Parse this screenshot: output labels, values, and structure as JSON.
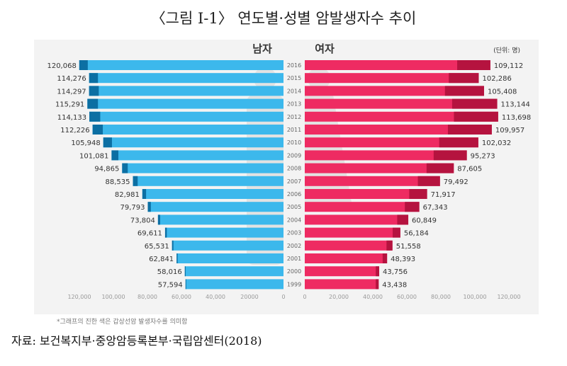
{
  "title": "〈그림 Ⅰ-1〉 연도별·성별 암발생자수 추이",
  "note": "*그래프의 진한 색은 갑상선암 발생자수를 의미함",
  "source": "자료: 보건복지부·중앙암등록본부·국립암센터(2018)",
  "colors": {
    "male": "#3cb8ec",
    "male_dark": "#0c6fa3",
    "female": "#ee2b62",
    "female_dark": "#b5133f",
    "figure": "#e2e2e2"
  },
  "chart_data": {
    "type": "bar",
    "orientation": "population-pyramid",
    "unit_label": "(단위: 명)",
    "left_header": "남자",
    "right_header": "여자",
    "categories": [
      "2016",
      "2015",
      "2014",
      "2013",
      "2012",
      "2011",
      "2010",
      "2009",
      "2008",
      "2007",
      "2006",
      "2005",
      "2004",
      "2003",
      "2002",
      "2001",
      "2000",
      "1999"
    ],
    "value_labels": {
      "male": [
        "120,068",
        "114,276",
        "114,297",
        "115,291",
        "114,133",
        "112,226",
        "105,948",
        "101,081",
        "94,865",
        "88,535",
        "82,981",
        "79,793",
        "73,804",
        "69,611",
        "65,531",
        "62,841",
        "58,016",
        "57,594"
      ],
      "female": [
        "109,112",
        "102,286",
        "105,408",
        "113,144",
        "113,698",
        "109,957",
        "102,032",
        "95,273",
        "87,605",
        "79,492",
        "71,917",
        "67,343",
        "60,849",
        "56,184",
        "51,558",
        "48,393",
        "43,756",
        "43,438"
      ]
    },
    "series": [
      {
        "name": "남자",
        "values": [
          120068,
          114276,
          114297,
          115291,
          114133,
          112226,
          105948,
          101081,
          94865,
          88535,
          82981,
          79793,
          73804,
          69611,
          65531,
          62841,
          58016,
          57594
        ]
      },
      {
        "name": "여자",
        "values": [
          109112,
          102286,
          105408,
          113144,
          113698,
          109957,
          102032,
          95273,
          87605,
          79492,
          71917,
          67343,
          60849,
          56184,
          51558,
          48393,
          43756,
          43438
        ]
      }
    ],
    "thyroid_series": [
      {
        "series": "남자",
        "values": [
          5000,
          5200,
          5700,
          6200,
          6400,
          6000,
          5100,
          4000,
          3300,
          2800,
          2200,
          1800,
          1300,
          1000,
          800,
          600,
          500,
          400
        ]
      },
      {
        "series": "여자",
        "values": [
          19500,
          17600,
          23000,
          26500,
          26000,
          25800,
          23000,
          19500,
          16000,
          13000,
          10500,
          8500,
          6500,
          4500,
          3500,
          2600,
          2000,
          1700
        ]
      }
    ],
    "x_axis": {
      "left_ticks": [
        "120,000",
        "100,000",
        "80,000",
        "60,000",
        "40,000",
        "20000",
        "0"
      ],
      "right_ticks": [
        "0",
        "20,000",
        "40,000",
        "60,000",
        "80,000",
        "100,000",
        "120,000"
      ],
      "range": [
        0,
        120000
      ]
    }
  }
}
